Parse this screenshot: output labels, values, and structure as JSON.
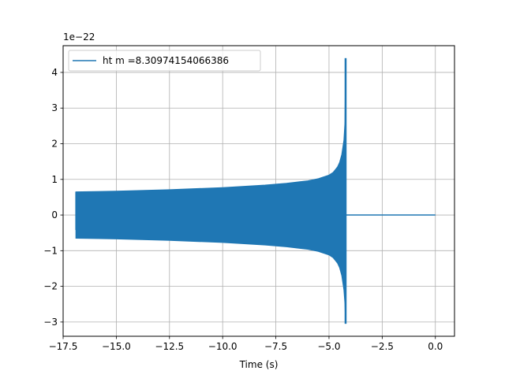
{
  "chart_data": {
    "type": "line",
    "title": "",
    "xlabel": "Time (s)",
    "ylabel": "",
    "y_offset_label": "1e−22",
    "xlim": [
      -17.5,
      0.9
    ],
    "ylim": [
      -3.4,
      4.75
    ],
    "xticks": [
      {
        "value": -17.5,
        "label": "−17.5"
      },
      {
        "value": -15.0,
        "label": "−15.0"
      },
      {
        "value": -12.5,
        "label": "−12.5"
      },
      {
        "value": -10.0,
        "label": "−10.0"
      },
      {
        "value": -7.5,
        "label": "−7.5"
      },
      {
        "value": -5.0,
        "label": "−5.0"
      },
      {
        "value": -2.5,
        "label": "−2.5"
      },
      {
        "value": 0.0,
        "label": "0.0"
      }
    ],
    "yticks": [
      {
        "value": -3,
        "label": "−3"
      },
      {
        "value": -2,
        "label": "−2"
      },
      {
        "value": -1,
        "label": "−1"
      },
      {
        "value": 0,
        "label": "0"
      },
      {
        "value": 1,
        "label": "1"
      },
      {
        "value": 2,
        "label": "2"
      },
      {
        "value": 3,
        "label": "3"
      },
      {
        "value": 4,
        "label": "4"
      }
    ],
    "grid": true,
    "legend_position": "top-left",
    "series": [
      {
        "name": "ht m =8.30974154066386",
        "color": "#1f77b4",
        "envelope": {
          "x": [
            -16.9,
            -15.0,
            -12.5,
            -10.0,
            -8.0,
            -7.0,
            -6.0,
            -5.5,
            -5.0,
            -4.8,
            -4.6,
            -4.5,
            -4.4,
            -4.3,
            -4.25,
            -4.22
          ],
          "upper": [
            0.65,
            0.67,
            0.71,
            0.77,
            0.84,
            0.89,
            0.96,
            1.02,
            1.12,
            1.2,
            1.35,
            1.48,
            1.7,
            2.1,
            2.6,
            4.4
          ],
          "lower": [
            -0.65,
            -0.67,
            -0.71,
            -0.77,
            -0.84,
            -0.89,
            -0.96,
            -1.02,
            -1.12,
            -1.2,
            -1.35,
            -1.48,
            -1.7,
            -2.1,
            -2.5,
            -3.05
          ]
        },
        "start_x": -16.9,
        "merger_x": -4.22,
        "peak_max": 4.4,
        "peak_min": -3.05,
        "ringdown_flat_from": -4.2,
        "end_x": 0.0
      }
    ]
  }
}
